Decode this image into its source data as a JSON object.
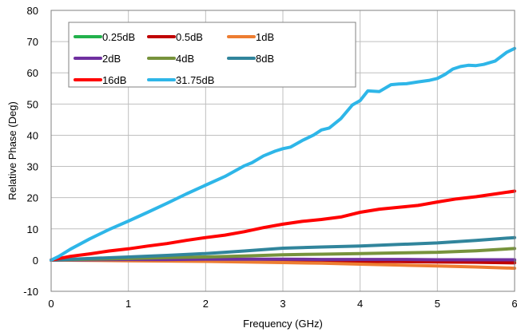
{
  "chart_data": {
    "type": "line",
    "title": "",
    "xlabel": "Frequency (GHz)",
    "ylabel": "Relative Phase (Deg)",
    "xlim": [
      0,
      6
    ],
    "ylim": [
      -10,
      80
    ],
    "xticks": [
      0,
      1,
      2,
      3,
      4,
      5,
      6
    ],
    "yticks": [
      -10,
      0,
      10,
      20,
      30,
      40,
      50,
      60,
      70,
      80
    ],
    "grid": true,
    "legend_position": "top-left",
    "series": [
      {
        "name": "0.25dB",
        "color": "#22b14c",
        "x": [
          0,
          0.5,
          1,
          1.5,
          2,
          2.5,
          3,
          3.5,
          4,
          4.5,
          5,
          5.5,
          6
        ],
        "y": [
          0,
          0.1,
          0.1,
          0.1,
          0.1,
          0,
          0,
          0,
          -0.1,
          -0.1,
          -0.1,
          -0.2,
          -0.2
        ]
      },
      {
        "name": "0.5dB",
        "color": "#c00000",
        "x": [
          0,
          0.5,
          1,
          1.5,
          2,
          2.5,
          3,
          3.5,
          4,
          4.5,
          5,
          5.5,
          6
        ],
        "y": [
          0,
          0,
          -0.1,
          -0.1,
          -0.2,
          -0.2,
          -0.3,
          -0.3,
          -0.4,
          -0.5,
          -0.6,
          -0.7,
          -0.9
        ]
      },
      {
        "name": "1dB",
        "color": "#ed7d31",
        "x": [
          0,
          0.5,
          1,
          1.5,
          2,
          2.5,
          3,
          3.5,
          4,
          4.5,
          5,
          5.5,
          6
        ],
        "y": [
          0,
          -0.1,
          -0.2,
          -0.3,
          -0.4,
          -0.6,
          -0.8,
          -1.0,
          -1.3,
          -1.6,
          -1.9,
          -2.2,
          -2.6
        ]
      },
      {
        "name": "2dB",
        "color": "#7030a0",
        "x": [
          0,
          0.5,
          1,
          1.5,
          2,
          2.5,
          3,
          3.5,
          4,
          4.5,
          5,
          5.5,
          6
        ],
        "y": [
          0,
          0.1,
          0.2,
          0.2,
          0.3,
          0.3,
          0.3,
          0.2,
          0.2,
          0.2,
          0.1,
          0.1,
          0.1
        ]
      },
      {
        "name": "4dB",
        "color": "#77933c",
        "x": [
          0,
          0.5,
          1,
          1.5,
          2,
          2.5,
          3,
          3.5,
          4,
          4.5,
          5,
          5.5,
          6
        ],
        "y": [
          0,
          0.3,
          0.5,
          0.8,
          1.0,
          1.3,
          1.7,
          1.9,
          2.1,
          2.3,
          2.5,
          3.0,
          3.7
        ]
      },
      {
        "name": "8dB",
        "color": "#31859c",
        "x": [
          0,
          0.5,
          1,
          1.5,
          2,
          2.5,
          3,
          3.5,
          4,
          4.5,
          5,
          5.5,
          6
        ],
        "y": [
          0,
          0.5,
          1.0,
          1.5,
          2.1,
          2.9,
          3.8,
          4.2,
          4.5,
          5.0,
          5.5,
          6.3,
          7.2
        ]
      },
      {
        "name": "16dB",
        "color": "#ff0000",
        "x": [
          0,
          0.25,
          0.5,
          0.75,
          1,
          1.25,
          1.5,
          1.75,
          2,
          2.25,
          2.5,
          2.75,
          3,
          3.25,
          3.5,
          3.75,
          4,
          4.25,
          4.5,
          4.75,
          5,
          5.25,
          5.5,
          5.75,
          6
        ],
        "y": [
          0,
          1.2,
          2.0,
          2.9,
          3.6,
          4.5,
          5.3,
          6.3,
          7.2,
          8.0,
          9.1,
          10.4,
          11.5,
          12.4,
          13.0,
          13.8,
          15.3,
          16.3,
          16.9,
          17.5,
          18.6,
          19.6,
          20.3,
          21.2,
          22.1
        ]
      },
      {
        "name": "31.75dB",
        "color": "#2eb6e8",
        "x": [
          0,
          0.1,
          0.25,
          0.5,
          0.75,
          1,
          1.25,
          1.5,
          1.75,
          2,
          2.25,
          2.5,
          2.6,
          2.75,
          2.9,
          3,
          3.1,
          3.25,
          3.4,
          3.5,
          3.6,
          3.75,
          3.9,
          4,
          4.1,
          4.25,
          4.4,
          4.5,
          4.6,
          4.75,
          4.9,
          5,
          5.1,
          5.2,
          5.3,
          5.4,
          5.5,
          5.6,
          5.75,
          5.9,
          6
        ],
        "y": [
          0,
          1.2,
          3.5,
          6.8,
          9.8,
          12.5,
          15.3,
          18.2,
          21.2,
          24.0,
          26.8,
          30.2,
          31.2,
          33.4,
          34.9,
          35.7,
          36.2,
          38.3,
          40.1,
          41.7,
          42.3,
          45.3,
          49.7,
          51.1,
          54.2,
          54.0,
          56.2,
          56.4,
          56.5,
          57.1,
          57.6,
          58.2,
          59.5,
          61.2,
          62.0,
          62.4,
          62.3,
          62.7,
          63.8,
          66.6,
          67.8
        ]
      }
    ]
  }
}
